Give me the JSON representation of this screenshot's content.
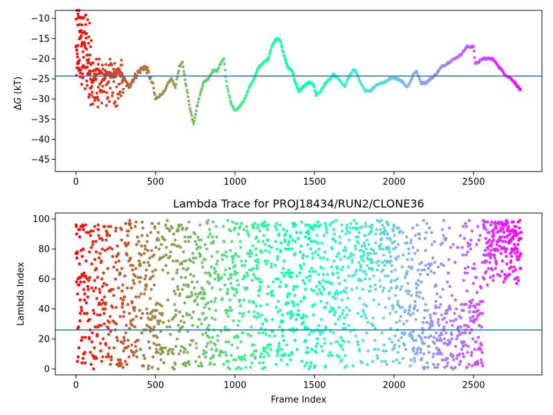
{
  "chart_data": [
    {
      "type": "scatter",
      "title": "",
      "xlabel": "",
      "ylabel": "ΔG (kT)",
      "ylabel_parts": {
        "delta": "Δ",
        "var": "G",
        "unit": " (kT)"
      },
      "xlim": [
        -130,
        2930
      ],
      "ylim": [
        -48,
        -8
      ],
      "xticks": [
        0,
        500,
        1000,
        1500,
        2000,
        2500
      ],
      "yticks": [
        -45,
        -40,
        -35,
        -30,
        -25,
        -20,
        -15,
        -10
      ],
      "hline": -24.3,
      "hline_color": "#1f77b4",
      "colormap": "rainbow (reversed: red at frame 0, violet at last frame)",
      "n_frames": 2800,
      "trace_points": [
        [
          100,
          -26
        ],
        [
          140,
          -22
        ],
        [
          170,
          -25
        ],
        [
          200,
          -24
        ],
        [
          240,
          -24
        ],
        [
          270,
          -23
        ],
        [
          300,
          -25
        ],
        [
          330,
          -27
        ],
        [
          360,
          -25
        ],
        [
          400,
          -23
        ],
        [
          430,
          -22
        ],
        [
          450,
          -23
        ],
        [
          480,
          -26
        ],
        [
          500,
          -30
        ],
        [
          530,
          -29
        ],
        [
          560,
          -28
        ],
        [
          580,
          -26
        ],
        [
          600,
          -25
        ],
        [
          625,
          -27
        ],
        [
          650,
          -22
        ],
        [
          670,
          -21
        ],
        [
          690,
          -26
        ],
        [
          720,
          -33
        ],
        [
          740,
          -36
        ],
        [
          760,
          -32
        ],
        [
          780,
          -29
        ],
        [
          800,
          -26
        ],
        [
          830,
          -25
        ],
        [
          860,
          -23
        ],
        [
          890,
          -23
        ],
        [
          910,
          -21
        ],
        [
          930,
          -20
        ],
        [
          950,
          -27
        ],
        [
          975,
          -31
        ],
        [
          1000,
          -33
        ],
        [
          1030,
          -32
        ],
        [
          1060,
          -30
        ],
        [
          1090,
          -27
        ],
        [
          1120,
          -25
        ],
        [
          1150,
          -22
        ],
        [
          1180,
          -21
        ],
        [
          1210,
          -20
        ],
        [
          1230,
          -17
        ],
        [
          1260,
          -15
        ],
        [
          1280,
          -15
        ],
        [
          1300,
          -18
        ],
        [
          1330,
          -22
        ],
        [
          1360,
          -23
        ],
        [
          1380,
          -26
        ],
        [
          1400,
          -28
        ],
        [
          1430,
          -27
        ],
        [
          1460,
          -26
        ],
        [
          1490,
          -26
        ],
        [
          1510,
          -29
        ],
        [
          1540,
          -28
        ],
        [
          1570,
          -26
        ],
        [
          1600,
          -25
        ],
        [
          1620,
          -24
        ],
        [
          1650,
          -25
        ],
        [
          1670,
          -26
        ],
        [
          1690,
          -27
        ],
        [
          1710,
          -25
        ],
        [
          1740,
          -23
        ],
        [
          1760,
          -23
        ],
        [
          1790,
          -26
        ],
        [
          1820,
          -28
        ],
        [
          1850,
          -28
        ],
        [
          1880,
          -27
        ],
        [
          1910,
          -26
        ],
        [
          1940,
          -26
        ],
        [
          1970,
          -25
        ],
        [
          2000,
          -25
        ],
        [
          2030,
          -25
        ],
        [
          2060,
          -26
        ],
        [
          2080,
          -27
        ],
        [
          2100,
          -26
        ],
        [
          2120,
          -24
        ],
        [
          2140,
          -23
        ],
        [
          2150,
          -24
        ],
        [
          2170,
          -26
        ],
        [
          2200,
          -26
        ],
        [
          2230,
          -25
        ],
        [
          2260,
          -24
        ],
        [
          2300,
          -22
        ],
        [
          2340,
          -21
        ],
        [
          2380,
          -20
        ],
        [
          2420,
          -19
        ],
        [
          2460,
          -17
        ],
        [
          2490,
          -17
        ],
        [
          2500,
          -17
        ],
        [
          2510,
          -21
        ],
        [
          2530,
          -21
        ],
        [
          2550,
          -20
        ],
        [
          2580,
          -20
        ],
        [
          2620,
          -20
        ],
        [
          2660,
          -22
        ],
        [
          2700,
          -24
        ],
        [
          2740,
          -25
        ],
        [
          2780,
          -27
        ],
        [
          2800,
          -28
        ]
      ]
    },
    {
      "type": "scatter",
      "title": "Lambda Trace for PROJ18434/RUN2/CLONE36",
      "xlabel": "Frame Index",
      "ylabel": "Lambda Index",
      "xlim": [
        -130,
        2930
      ],
      "ylim": [
        -4,
        104
      ],
      "xticks": [
        0,
        500,
        1000,
        1500,
        2000,
        2500
      ],
      "yticks": [
        0,
        20,
        40,
        60,
        80,
        100
      ],
      "hline": 26,
      "hline_color": "#1f77b4",
      "colormap": "rainbow (reversed: red at frame 0, violet at last frame)",
      "n_frames": 2800,
      "distribution_note": "frames 0–2560 spread across lambda 0–99; frames 2560–2800 concentrated between 55 and 99"
    }
  ]
}
